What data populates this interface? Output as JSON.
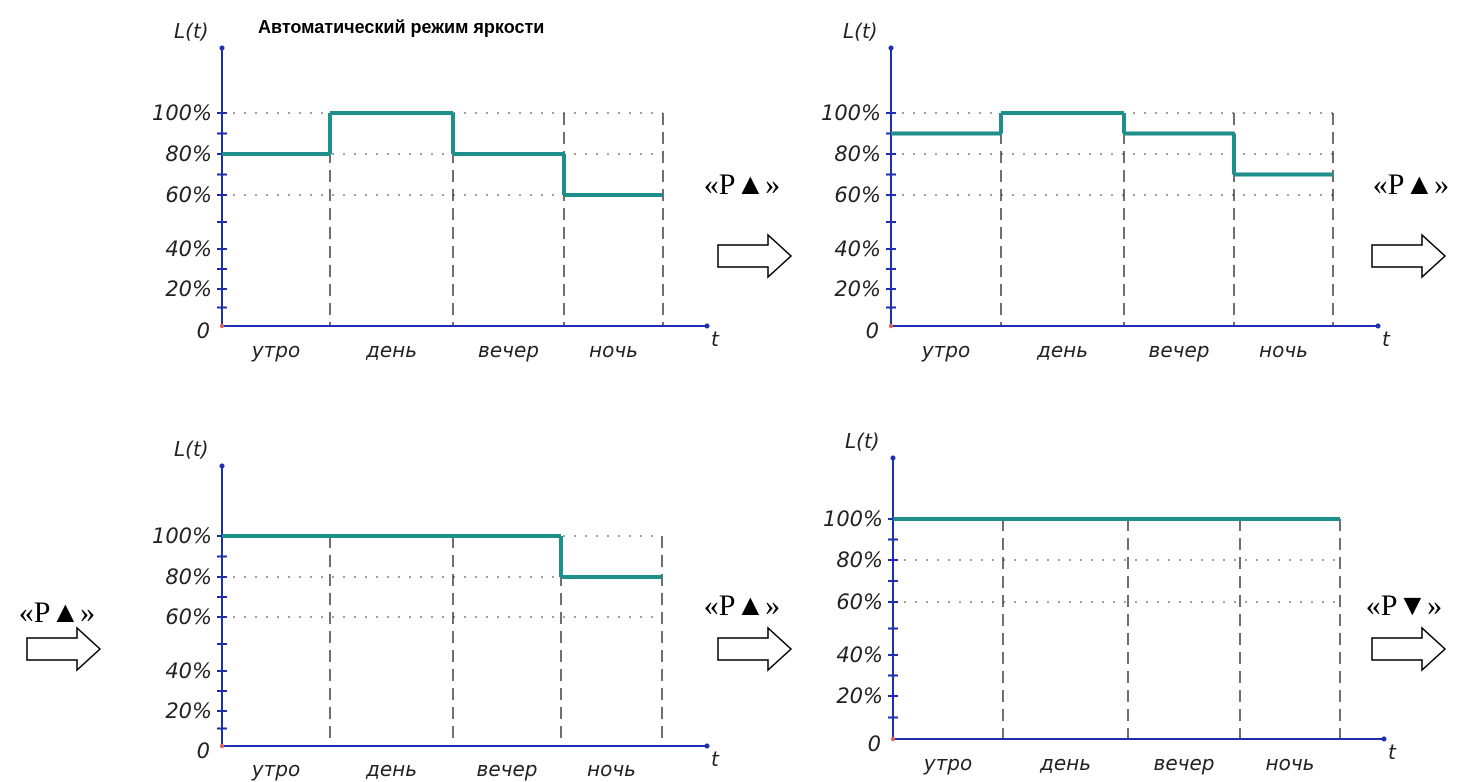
{
  "title": "Автоматический режим яркости",
  "colors": {
    "axis": "#1d2fb0",
    "series": "#1f8f8c",
    "grid": "#666666"
  },
  "transitions": [
    {
      "label": "«P▲»"
    },
    {
      "label": "«P▲»"
    },
    {
      "label": "«P▲»"
    },
    {
      "label": "«P▲»"
    },
    {
      "label": "«P▼»"
    }
  ],
  "chart_data": [
    {
      "type": "line",
      "step": true,
      "ylabel": "L(t)",
      "xlabel": "t",
      "origin_label": "0",
      "yticks": [
        "20%",
        "40%",
        "60%",
        "80%",
        "100%"
      ],
      "categories": [
        "утро",
        "день",
        "вечер",
        "ночь"
      ],
      "ylim": [
        0,
        100
      ],
      "values": [
        80,
        100,
        80,
        60
      ]
    },
    {
      "type": "line",
      "step": true,
      "ylabel": "L(t)",
      "xlabel": "t",
      "origin_label": "0",
      "yticks": [
        "20%",
        "40%",
        "60%",
        "80%",
        "100%"
      ],
      "categories": [
        "утро",
        "день",
        "вечер",
        "ночь"
      ],
      "ylim": [
        0,
        100
      ],
      "values": [
        90,
        100,
        90,
        70
      ]
    },
    {
      "type": "line",
      "step": true,
      "ylabel": "L(t)",
      "xlabel": "t",
      "origin_label": "0",
      "yticks": [
        "20%",
        "40%",
        "60%",
        "80%",
        "100%"
      ],
      "categories": [
        "утро",
        "день",
        "вечер",
        "ночь"
      ],
      "ylim": [
        0,
        100
      ],
      "values": [
        100,
        100,
        100,
        80
      ]
    },
    {
      "type": "line",
      "step": true,
      "ylabel": "L(t)",
      "xlabel": "t",
      "origin_label": "0",
      "yticks": [
        "20%",
        "40%",
        "60%",
        "80%",
        "100%"
      ],
      "categories": [
        "утро",
        "день",
        "вечер",
        "ночь"
      ],
      "ylim": [
        0,
        100
      ],
      "values": [
        100,
        100,
        100,
        100
      ]
    }
  ]
}
